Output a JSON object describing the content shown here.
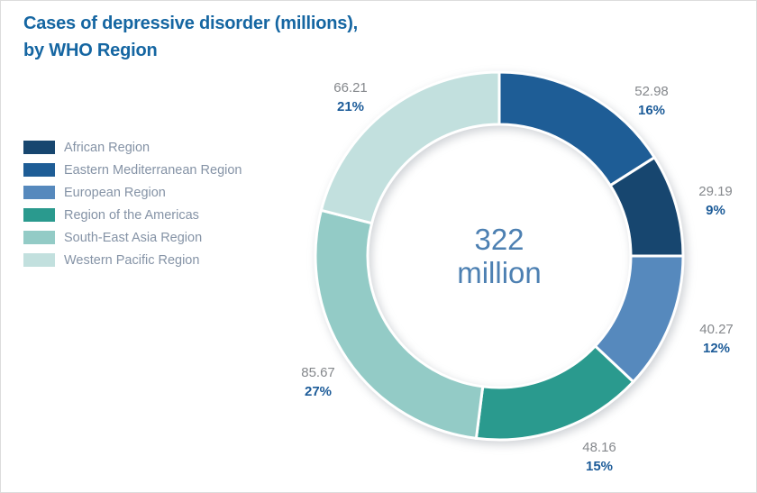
{
  "title": {
    "line1": "Cases of depressive disorder (millions),",
    "line2": "by WHO Region"
  },
  "center": {
    "value": "322",
    "unit": "million"
  },
  "legend": [
    {
      "name": "African Region",
      "color": "#17466f"
    },
    {
      "name": "Eastern Mediterranean Region",
      "color": "#1e5d96"
    },
    {
      "name": "European Region",
      "color": "#5689bd"
    },
    {
      "name": "Region of the Americas",
      "color": "#2a9a8e"
    },
    {
      "name": "South-East Asia Region",
      "color": "#93cbc6"
    },
    {
      "name": "Western Pacific Region",
      "color": "#c2e0de"
    }
  ],
  "slices": [
    {
      "id": "eastern-mediterranean",
      "region": "Eastern Mediterranean Region",
      "value": "52.98",
      "percent": "16%",
      "pct": 16,
      "color": "#1e5d96"
    },
    {
      "id": "african",
      "region": "African Region",
      "value": "29.19",
      "percent": "9%",
      "pct": 9,
      "color": "#17466f"
    },
    {
      "id": "european",
      "region": "European Region",
      "value": "40.27",
      "percent": "12%",
      "pct": 12,
      "color": "#5689bd"
    },
    {
      "id": "americas",
      "region": "Region of the Americas",
      "value": "48.16",
      "percent": "15%",
      "pct": 15,
      "color": "#2a9a8e"
    },
    {
      "id": "south-east-asia",
      "region": "South-East Asia Region",
      "value": "85.67",
      "percent": "27%",
      "pct": 27,
      "color": "#93cbc6"
    },
    {
      "id": "western-pacific",
      "region": "Western Pacific Region",
      "value": "66.21",
      "percent": "21%",
      "pct": 21,
      "color": "#c2e0de"
    }
  ],
  "chart_data": {
    "type": "pie",
    "subtype": "donut",
    "title": "Cases of depressive disorder (millions), by WHO Region",
    "categories": [
      "Eastern Mediterranean Region",
      "African Region",
      "European Region",
      "Region of the Americas",
      "South-East Asia Region",
      "Western Pacific Region"
    ],
    "values": [
      52.98,
      29.19,
      40.27,
      48.16,
      85.67,
      66.21
    ],
    "percents": [
      16,
      9,
      12,
      15,
      27,
      21
    ],
    "total": 322,
    "center_label": "322 million",
    "units": "millions of cases",
    "legend_position": "left",
    "legend_order": [
      "African Region",
      "Eastern Mediterranean Region",
      "European Region",
      "Region of the Americas",
      "South-East Asia Region",
      "Western Pacific Region"
    ],
    "start_angle_deg": 0,
    "direction": "clockwise",
    "colors": [
      "#1e5d96",
      "#17466f",
      "#5689bd",
      "#2a9a8e",
      "#93cbc6",
      "#c2e0de"
    ]
  }
}
